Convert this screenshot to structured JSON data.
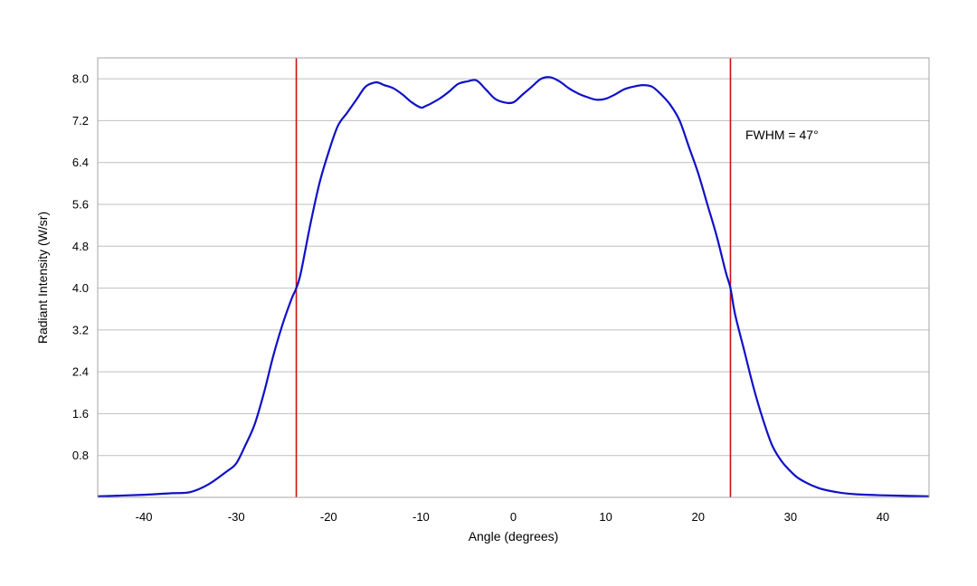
{
  "chart_data": {
    "type": "line",
    "title": "",
    "xlabel": "Angle (degrees)",
    "ylabel": "Radiant Intensity (W/sr)",
    "xlim": [
      -45,
      45
    ],
    "ylim": [
      0,
      8.4
    ],
    "x_ticks": [
      -40,
      -30,
      -20,
      -10,
      0,
      10,
      20,
      30,
      40
    ],
    "x_tick_labels": [
      "-40",
      "-30",
      "-20",
      "-10",
      "0",
      "10",
      "20",
      "30",
      "40"
    ],
    "y_ticks": [
      0.8,
      1.6,
      2.4,
      3.2,
      4.0,
      4.8,
      5.6,
      6.4,
      7.2,
      8.0
    ],
    "y_tick_labels": [
      "0.8",
      "1.6",
      "2.4",
      "3.2",
      "4.0",
      "4.8",
      "5.6",
      "6.4",
      "7.2",
      "8.0"
    ],
    "grid": true,
    "annotation": "FWHM = 47°",
    "vertical_lines": [
      -23.5,
      23.5
    ],
    "colors": {
      "curve": "#1010c8",
      "markers": "#cc1010",
      "grid": "#bfbfbf",
      "frame": "#a6a6a6"
    },
    "series": [
      {
        "x": [
          -45,
          -40,
          -37,
          -35,
          -33,
          -31,
          -30,
          -29,
          -28,
          -27,
          -26,
          -25,
          -24,
          -23.5,
          -23,
          -22,
          -21,
          -20,
          -19,
          -18,
          -17,
          -16,
          -15,
          -14.5,
          -14,
          -13,
          -12,
          -11,
          -10,
          -9.5,
          -9,
          -8,
          -7,
          -6,
          -5,
          -4,
          -3,
          -2,
          -1,
          0,
          1,
          2,
          3,
          4,
          5,
          6,
          7,
          8,
          9,
          10,
          11,
          12,
          13,
          14,
          15,
          16,
          17,
          18,
          19,
          20,
          21,
          22,
          23,
          23.5,
          24,
          25,
          26,
          27,
          28,
          29,
          30,
          31,
          33,
          35,
          37,
          40,
          45
        ],
        "y": [
          0.02,
          0.05,
          0.08,
          0.1,
          0.25,
          0.5,
          0.65,
          1.0,
          1.4,
          2.0,
          2.7,
          3.3,
          3.8,
          4.0,
          4.3,
          5.2,
          6.0,
          6.6,
          7.1,
          7.35,
          7.6,
          7.85,
          7.93,
          7.92,
          7.88,
          7.82,
          7.7,
          7.55,
          7.45,
          7.48,
          7.52,
          7.62,
          7.75,
          7.9,
          7.95,
          7.97,
          7.8,
          7.62,
          7.55,
          7.55,
          7.7,
          7.85,
          8.0,
          8.03,
          7.95,
          7.82,
          7.72,
          7.65,
          7.6,
          7.62,
          7.7,
          7.8,
          7.85,
          7.88,
          7.85,
          7.7,
          7.5,
          7.2,
          6.7,
          6.2,
          5.6,
          5.0,
          4.3,
          4.0,
          3.5,
          2.8,
          2.1,
          1.5,
          1.0,
          0.7,
          0.5,
          0.35,
          0.18,
          0.1,
          0.06,
          0.04,
          0.02
        ]
      }
    ]
  }
}
